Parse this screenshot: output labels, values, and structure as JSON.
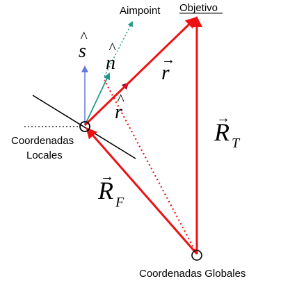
{
  "labels": {
    "objetivo": "Objetivo",
    "aimpoint": "Aimpoint",
    "coord_locales_line1": "Coordenadas",
    "coord_locales_line2": "Locales",
    "coord_globales": "Coordenadas Globales"
  },
  "vectors": {
    "s_hat": "s",
    "n_hat": "n",
    "r_vec": "r",
    "r_hat": "r",
    "R_T_main": "R",
    "R_T_sub": "T",
    "R_F_main": "R",
    "R_F_sub": "F"
  },
  "colors": {
    "red": "#ee1111",
    "dark_red": "#990033",
    "blue": "#6677dd",
    "teal": "#229988",
    "black": "#000000"
  }
}
